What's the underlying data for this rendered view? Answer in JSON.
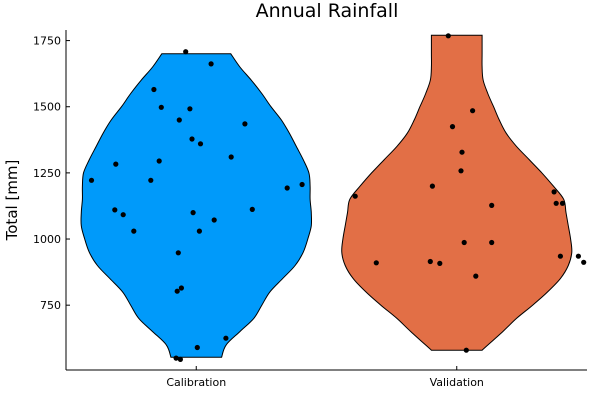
{
  "chart_data": {
    "type": "violin",
    "title": "Annual Rainfall",
    "xlabel": "",
    "ylabel": "Total [mm]",
    "categories": [
      "Calibration",
      "Validation"
    ],
    "ylim": [
      505,
      1790
    ],
    "yticks": [
      750,
      1000,
      1250,
      1500,
      1750
    ],
    "grid": false,
    "legend": "none",
    "series": [
      {
        "category": "Calibration",
        "color": "#009AFA",
        "range": [
          553,
          1700
        ],
        "density_profile": [
          [
            553,
            0.22
          ],
          [
            600,
            0.26
          ],
          [
            650,
            0.38
          ],
          [
            700,
            0.5
          ],
          [
            750,
            0.57
          ],
          [
            800,
            0.64
          ],
          [
            850,
            0.75
          ],
          [
            900,
            0.86
          ],
          [
            950,
            0.93
          ],
          [
            1000,
            0.97
          ],
          [
            1050,
            1.0
          ],
          [
            1100,
            1.0
          ],
          [
            1150,
            0.99
          ],
          [
            1200,
            0.99
          ],
          [
            1250,
            0.98
          ],
          [
            1300,
            0.93
          ],
          [
            1350,
            0.87
          ],
          [
            1400,
            0.81
          ],
          [
            1450,
            0.74
          ],
          [
            1500,
            0.65
          ],
          [
            1550,
            0.57
          ],
          [
            1600,
            0.48
          ],
          [
            1650,
            0.38
          ],
          [
            1700,
            0.3
          ]
        ],
        "points": [
          [
            -0.1,
            1708
          ],
          [
            0.14,
            1662
          ],
          [
            -0.4,
            1565
          ],
          [
            -0.33,
            1498
          ],
          [
            -0.06,
            1492
          ],
          [
            -0.16,
            1450
          ],
          [
            0.46,
            1435
          ],
          [
            -0.04,
            1378
          ],
          [
            0.04,
            1360
          ],
          [
            0.33,
            1310
          ],
          [
            -0.35,
            1295
          ],
          [
            -0.76,
            1283
          ],
          [
            -0.43,
            1222
          ],
          [
            -0.99,
            1222
          ],
          [
            1.0,
            1206
          ],
          [
            0.86,
            1193
          ],
          [
            0.53,
            1112
          ],
          [
            -0.77,
            1110
          ],
          [
            -0.69,
            1092
          ],
          [
            -0.03,
            1100
          ],
          [
            0.17,
            1072
          ],
          [
            -0.59,
            1030
          ],
          [
            0.03,
            1030
          ],
          [
            -0.17,
            948
          ],
          [
            -0.14,
            815
          ],
          [
            -0.18,
            803
          ],
          [
            0.28,
            625
          ],
          [
            0.01,
            590
          ],
          [
            -0.19,
            550
          ],
          [
            -0.15,
            545
          ]
        ]
      },
      {
        "category": "Validation",
        "color": "#E26F46",
        "range": [
          580,
          1770
        ],
        "density_profile": [
          [
            580,
            0.22
          ],
          [
            650,
            0.4
          ],
          [
            700,
            0.52
          ],
          [
            750,
            0.66
          ],
          [
            800,
            0.79
          ],
          [
            850,
            0.9
          ],
          [
            900,
            0.97
          ],
          [
            950,
            1.0
          ],
          [
            1000,
            0.99
          ],
          [
            1050,
            0.97
          ],
          [
            1100,
            0.95
          ],
          [
            1150,
            0.93
          ],
          [
            1200,
            0.84
          ],
          [
            1250,
            0.74
          ],
          [
            1300,
            0.63
          ],
          [
            1350,
            0.52
          ],
          [
            1400,
            0.43
          ],
          [
            1450,
            0.37
          ],
          [
            1500,
            0.32
          ],
          [
            1550,
            0.27
          ],
          [
            1600,
            0.23
          ],
          [
            1650,
            0.22
          ],
          [
            1700,
            0.22
          ],
          [
            1770,
            0.22
          ]
        ],
        "points": [
          [
            -0.08,
            1768
          ],
          [
            0.15,
            1485
          ],
          [
            -0.04,
            1425
          ],
          [
            0.05,
            1328
          ],
          [
            -0.23,
            1200
          ],
          [
            0.04,
            1258
          ],
          [
            -0.96,
            1162
          ],
          [
            0.92,
            1178
          ],
          [
            0.94,
            1135
          ],
          [
            1.0,
            1135
          ],
          [
            0.33,
            1127
          ],
          [
            0.07,
            987
          ],
          [
            0.33,
            987
          ],
          [
            0.98,
            935
          ],
          [
            1.15,
            935
          ],
          [
            -0.25,
            915
          ],
          [
            -0.16,
            908
          ],
          [
            -0.76,
            910
          ],
          [
            1.2,
            912
          ],
          [
            0.18,
            860
          ],
          [
            0.09,
            580
          ]
        ]
      }
    ]
  }
}
